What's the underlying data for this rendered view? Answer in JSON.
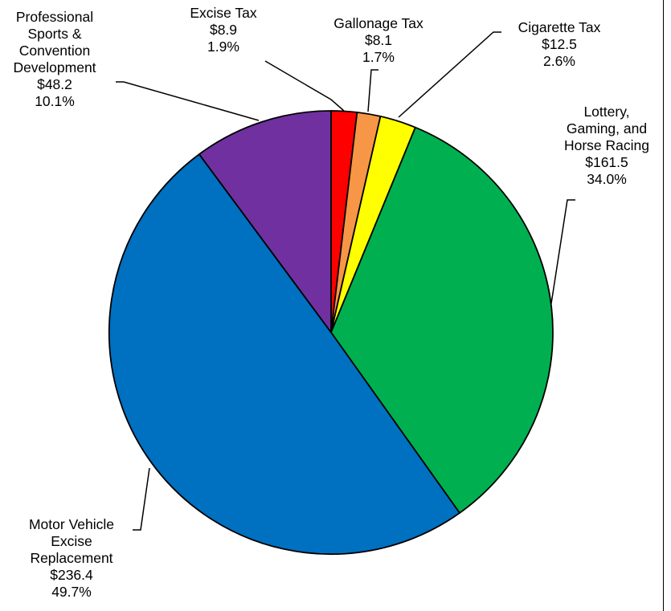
{
  "chart_data": {
    "type": "pie",
    "title": "",
    "start_angle_deg": 0,
    "direction": "clockwise",
    "slices": [
      {
        "key": "excise",
        "label_lines": [
          "Excise Tax"
        ],
        "value_label": "$8.9",
        "pct_label": "1.9%",
        "value": 8.9,
        "color": "#ff0000"
      },
      {
        "key": "gallonage",
        "label_lines": [
          "Gallonage Tax"
        ],
        "value_label": "$8.1",
        "pct_label": "1.7%",
        "value": 8.1,
        "color": "#f79646"
      },
      {
        "key": "cigarette",
        "label_lines": [
          "Cigarette Tax"
        ],
        "value_label": "$12.5",
        "pct_label": "2.6%",
        "value": 12.5,
        "color": "#ffff00"
      },
      {
        "key": "lottery",
        "label_lines": [
          "Lottery,",
          "Gaming, and",
          "Horse Racing"
        ],
        "value_label": "$161.5",
        "pct_label": "34.0%",
        "value": 161.5,
        "color": "#00b050"
      },
      {
        "key": "motor",
        "label_lines": [
          "Motor Vehicle",
          "Excise",
          "Replacement"
        ],
        "value_label": "$236.4",
        "pct_label": "49.7%",
        "value": 236.4,
        "color": "#0070c0"
      },
      {
        "key": "sports",
        "label_lines": [
          "Professional",
          "Sports &",
          "Convention",
          "Development"
        ],
        "value_label": "$48.2",
        "pct_label": "10.1%",
        "value": 48.2,
        "color": "#7030a0"
      }
    ]
  }
}
